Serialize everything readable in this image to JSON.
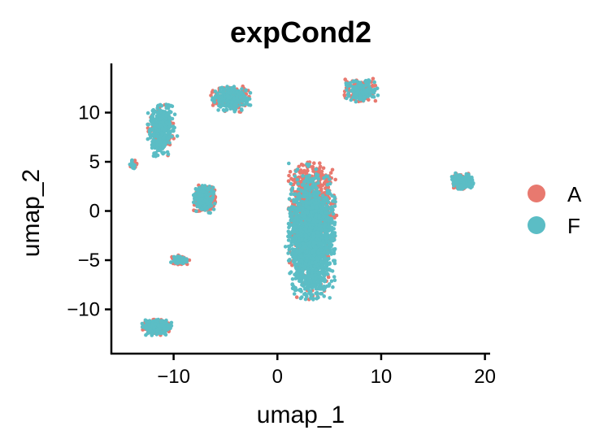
{
  "chart_data": {
    "type": "scatter",
    "title": "expCond2",
    "xlabel": "umap_1",
    "ylabel": "umap_2",
    "xlim": [
      -16,
      20.5
    ],
    "ylim": [
      -14.5,
      15
    ],
    "x_ticks": [
      -10,
      0,
      10,
      20
    ],
    "y_ticks": [
      -10,
      -5,
      0,
      5,
      10
    ],
    "grid": false,
    "legend": {
      "position": "right",
      "entries": [
        {
          "label": "A",
          "color": "#E8796F"
        },
        {
          "label": "F",
          "color": "#5BBDC5"
        }
      ]
    },
    "clusters": [
      {
        "name": "central",
        "cx": 3.3,
        "cy": -2.0,
        "sx": 1.9,
        "sy": 5.8,
        "n": 2600,
        "a_frac_top": 0.85,
        "a_frac_bottom": 0.08
      },
      {
        "name": "top-left",
        "cx": -11.2,
        "cy": 8.3,
        "sx": 1.1,
        "sy": 2.3,
        "n": 420,
        "a_frac": 0.2
      },
      {
        "name": "top-middle",
        "cx": -4.5,
        "cy": 11.4,
        "sx": 1.6,
        "sy": 1.1,
        "n": 330,
        "a_frac": 0.4
      },
      {
        "name": "top-right-arc",
        "cx": 8.0,
        "cy": 12.3,
        "sx": 1.4,
        "sy": 1.0,
        "n": 280,
        "a_frac": 0.5
      },
      {
        "name": "left-middle",
        "cx": -7.0,
        "cy": 1.2,
        "sx": 0.9,
        "sy": 1.2,
        "n": 320,
        "a_frac": 0.45
      },
      {
        "name": "far-right",
        "cx": 17.8,
        "cy": 3.0,
        "sx": 0.9,
        "sy": 0.7,
        "n": 190,
        "a_frac": 0.35
      },
      {
        "name": "left-small",
        "cx": -9.4,
        "cy": -5.0,
        "sx": 0.8,
        "sy": 0.4,
        "n": 110,
        "a_frac": 0.5
      },
      {
        "name": "bottom-left",
        "cx": -11.6,
        "cy": -11.8,
        "sx": 1.2,
        "sy": 0.7,
        "n": 300,
        "a_frac": 0.35
      },
      {
        "name": "far-left-tiny",
        "cx": -14.0,
        "cy": 4.7,
        "sx": 0.4,
        "sy": 0.4,
        "n": 25,
        "a_frac": 0.5
      }
    ]
  }
}
